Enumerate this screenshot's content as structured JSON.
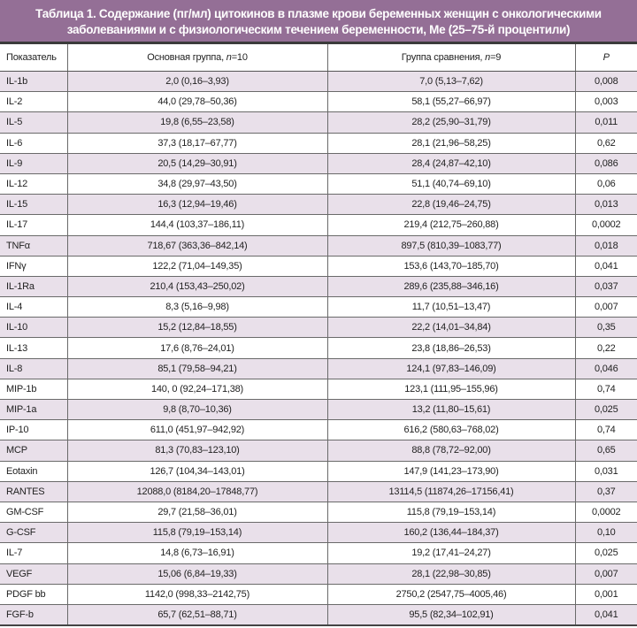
{
  "title": "Таблица 1. Содержание (пг/мл) цитокинов в плазме крови беременных женщин с онкологическими заболеваниями и с физиологическим течением беременности, Ме (25–75-й процентили)",
  "headers": {
    "indicator": "Показатель",
    "main_group": "Основная группа, ",
    "main_n": "n",
    "main_count": "=10",
    "compare_group": "Группа сравнения, ",
    "compare_n": "n",
    "compare_count": "=9",
    "p": "P"
  },
  "rows": [
    {
      "name": "IL-1b",
      "main": "2,0 (0,16–3,93)",
      "compare": "7,0 (5,13–7,62)",
      "p": "0,008"
    },
    {
      "name": "IL-2",
      "main": "44,0 (29,78–50,36)",
      "compare": "58,1 (55,27–66,97)",
      "p": "0,003"
    },
    {
      "name": "IL-5",
      "main": "19,8 (6,55–23,58)",
      "compare": "28,2 (25,90–31,79)",
      "p": "0,011"
    },
    {
      "name": "IL-6",
      "main": "37,3 (18,17–67,77)",
      "compare": "28,1 (21,96–58,25)",
      "p": "0,62"
    },
    {
      "name": "IL-9",
      "main": "20,5 (14,29–30,91)",
      "compare": "28,4 (24,87–42,10)",
      "p": "0,086"
    },
    {
      "name": "IL-12",
      "main": "34,8 (29,97–43,50)",
      "compare": "51,1 (40,74–69,10)",
      "p": "0,06"
    },
    {
      "name": "IL-15",
      "main": "16,3 (12,94–19,46)",
      "compare": "22,8 (19,46–24,75)",
      "p": "0,013"
    },
    {
      "name": "IL-17",
      "main": "144,4 (103,37–186,11)",
      "compare": "219,4 (212,75–260,88)",
      "p": "0,0002"
    },
    {
      "name": "TNFα",
      "main": "718,67 (363,36–842,14)",
      "compare": "897,5 (810,39–1083,77)",
      "p": "0,018"
    },
    {
      "name": "IFNγ",
      "main": "122,2 (71,04–149,35)",
      "compare": "153,6 (143,70–185,70)",
      "p": "0,041"
    },
    {
      "name": "IL-1Ra",
      "main": "210,4 (153,43–250,02)",
      "compare": "289,6 (235,88–346,16)",
      "p": "0,037"
    },
    {
      "name": "IL-4",
      "main": "8,3 (5,16–9,98)",
      "compare": "11,7 (10,51–13,47)",
      "p": "0,007"
    },
    {
      "name": "IL-10",
      "main": "15,2 (12,84–18,55)",
      "compare": "22,2 (14,01–34,84)",
      "p": "0,35"
    },
    {
      "name": "IL-13",
      "main": "17,6 (8,76–24,01)",
      "compare": "23,8 (18,86–26,53)",
      "p": "0,22"
    },
    {
      "name": "IL-8",
      "main": "85,1 (79,58–94,21)",
      "compare": "124,1 (97,83–146,09)",
      "p": "0,046"
    },
    {
      "name": "MIP-1b",
      "main": "140, 0 (92,24–171,38)",
      "compare": "123,1 (111,95–155,96)",
      "p": "0,74"
    },
    {
      "name": "MIP-1a",
      "main": "9,8 (8,70–10,36)",
      "compare": "13,2 (11,80–15,61)",
      "p": "0,025"
    },
    {
      "name": "IP-10",
      "main": "611,0 (451,97–942,92)",
      "compare": "616,2 (580,63–768,02)",
      "p": "0,74"
    },
    {
      "name": "MCP",
      "main": "81,3 (70,83–123,10)",
      "compare": "88,8 (78,72–92,00)",
      "p": "0,65"
    },
    {
      "name": "Eotaxin",
      "main": "126,7 (104,34–143,01)",
      "compare": "147,9 (141,23–173,90)",
      "p": "0,031"
    },
    {
      "name": "RANTES",
      "main": "12088,0 (8184,20–17848,77)",
      "compare": "13114,5 (11874,26–17156,41)",
      "p": "0,37"
    },
    {
      "name": "GM-CSF",
      "main": "29,7 (21,58–36,01)",
      "compare": "115,8 (79,19–153,14)",
      "p": "0,0002"
    },
    {
      "name": "G-CSF",
      "main": "115,8 (79,19–153,14)",
      "compare": "160,2 (136,44–184,37)",
      "p": "0,10"
    },
    {
      "name": "IL-7",
      "main": "14,8 (6,73–16,91)",
      "compare": "19,2 (17,41–24,27)",
      "p": "0,025"
    },
    {
      "name": "VEGF",
      "main": "15,06 (6,84–19,33)",
      "compare": "28,1 (22,98–30,85)",
      "p": "0,007"
    },
    {
      "name": "PDGF bb",
      "main": "1142,0 (998,33–2142,75)",
      "compare": "2750,2 (2547,75–4005,46)",
      "p": "0,001"
    },
    {
      "name": "FGF-b",
      "main": "65,7 (62,51–88,71)",
      "compare": "95,5 (82,34–102,91)",
      "p": "0,041"
    }
  ]
}
